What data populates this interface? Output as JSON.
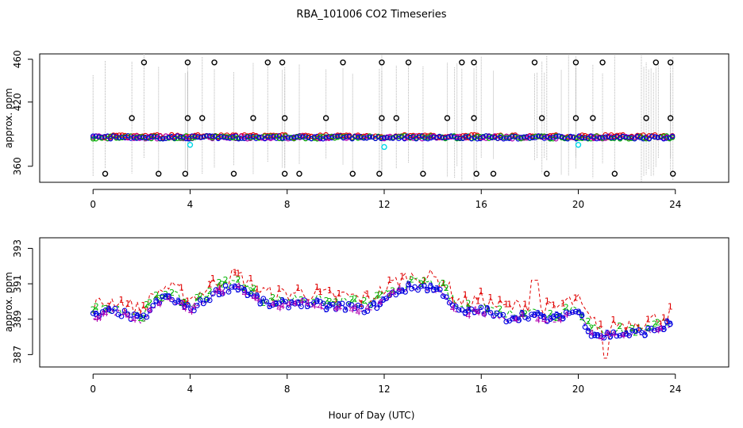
{
  "title": "RBA_101006  CO2 Timeseries",
  "xlabel": "Hour of Day (UTC)",
  "colors": {
    "series1": "#e00000",
    "series2": "#00b400",
    "series3": "#0000e0",
    "series4": "#b000b0",
    "cyan": "#00d8e8",
    "outlier": "#000000",
    "spike": "#b4b4b4"
  },
  "chart_data": [
    {
      "type": "scatter",
      "name": "top-panel",
      "ylabel": "approx. ppm",
      "xlim": [
        -2.2,
        26.2
      ],
      "ylim": [
        345,
        465
      ],
      "xticks": [
        0,
        4,
        8,
        12,
        16,
        20,
        24
      ],
      "yticks": [
        360,
        420,
        460
      ],
      "baseline": {
        "x_start": 0,
        "x_end": 24,
        "value": 387
      },
      "outliers_high": [
        2.1,
        3.9,
        5.0,
        7.2,
        7.8,
        10.3,
        11.9,
        13.0,
        15.2,
        15.7,
        18.2,
        19.9,
        21.0,
        23.2,
        23.8
      ],
      "outliers_mid": [
        1.6,
        3.9,
        4.5,
        6.6,
        7.9,
        9.6,
        11.9,
        12.5,
        14.6,
        15.7,
        18.5,
        19.9,
        20.6,
        22.8,
        23.8
      ],
      "outliers_low": [
        0.5,
        2.7,
        3.8,
        5.8,
        7.9,
        8.5,
        10.7,
        11.8,
        13.6,
        15.8,
        16.5,
        18.7,
        21.5,
        23.9
      ],
      "cyan_points": [
        [
          4.0,
          380
        ],
        [
          12.0,
          378
        ],
        [
          20.0,
          380
        ]
      ]
    },
    {
      "type": "scatter",
      "name": "bottom-panel",
      "ylabel": "approx. ppm",
      "xlim": [
        -2.2,
        26.2
      ],
      "ylim": [
        386.3,
        393.6
      ],
      "xticks": [
        0,
        4,
        8,
        12,
        16,
        20,
        24
      ],
      "yticks": [
        387,
        389,
        391,
        393
      ],
      "marker_labels": [
        "1",
        "2",
        "3",
        "4"
      ],
      "base_curve": [
        [
          0.0,
          389.2
        ],
        [
          0.5,
          389.4
        ],
        [
          1.0,
          389.5
        ],
        [
          1.5,
          389.2
        ],
        [
          2.0,
          389.0
        ],
        [
          2.5,
          389.8
        ],
        [
          3.0,
          390.3
        ],
        [
          3.5,
          390.0
        ],
        [
          4.0,
          389.6
        ],
        [
          4.5,
          390.0
        ],
        [
          5.0,
          390.5
        ],
        [
          5.5,
          390.8
        ],
        [
          6.0,
          390.9
        ],
        [
          6.5,
          390.4
        ],
        [
          7.0,
          390.0
        ],
        [
          7.5,
          389.8
        ],
        [
          8.0,
          389.9
        ],
        [
          8.5,
          390.0
        ],
        [
          9.0,
          389.9
        ],
        [
          9.5,
          389.8
        ],
        [
          10.0,
          389.7
        ],
        [
          10.5,
          389.8
        ],
        [
          11.0,
          389.6
        ],
        [
          11.5,
          389.7
        ],
        [
          12.0,
          390.1
        ],
        [
          12.5,
          390.6
        ],
        [
          13.0,
          390.8
        ],
        [
          13.5,
          390.9
        ],
        [
          14.0,
          390.8
        ],
        [
          14.5,
          390.5
        ],
        [
          15.0,
          389.5
        ],
        [
          15.5,
          389.4
        ],
        [
          16.0,
          389.6
        ],
        [
          16.5,
          389.3
        ],
        [
          17.0,
          389.1
        ],
        [
          17.5,
          389.2
        ],
        [
          18.0,
          389.3
        ],
        [
          18.5,
          389.1
        ],
        [
          19.0,
          389.0
        ],
        [
          19.5,
          389.4
        ],
        [
          20.0,
          389.5
        ],
        [
          20.5,
          388.3
        ],
        [
          21.0,
          388.1
        ],
        [
          21.5,
          388.2
        ],
        [
          22.0,
          388.2
        ],
        [
          22.5,
          388.3
        ],
        [
          23.0,
          388.4
        ],
        [
          23.5,
          388.6
        ],
        [
          23.8,
          388.8
        ]
      ]
    }
  ]
}
